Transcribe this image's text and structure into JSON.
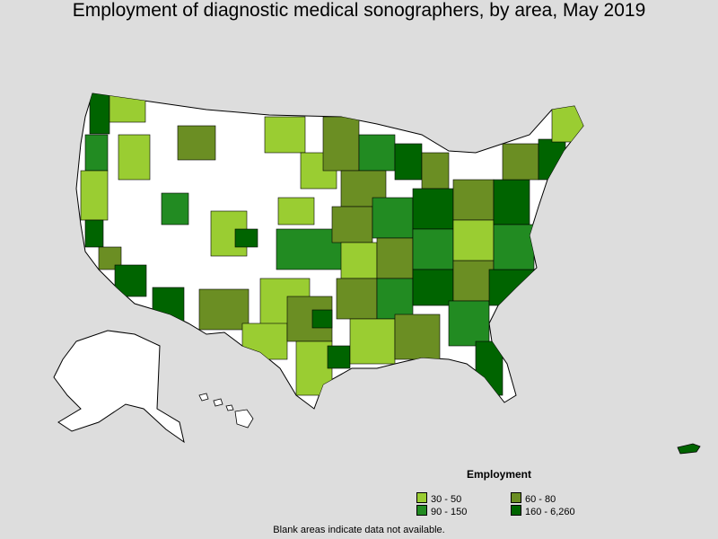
{
  "title": "Employment of diagnostic medical sonographers, by area, May 2019",
  "legend": {
    "title": "Employment",
    "items": [
      {
        "label": "30 - 50",
        "color": "#9acd32"
      },
      {
        "label": "60 - 80",
        "color": "#6b8e23"
      },
      {
        "label": "90 - 150",
        "color": "#228b22"
      },
      {
        "label": "160 - 6,260",
        "color": "#006400"
      }
    ]
  },
  "footnote": "Blank areas indicate data not available.",
  "colors": {
    "background": "#dddddd",
    "no_data": "#ffffff",
    "border": "#000000"
  }
}
